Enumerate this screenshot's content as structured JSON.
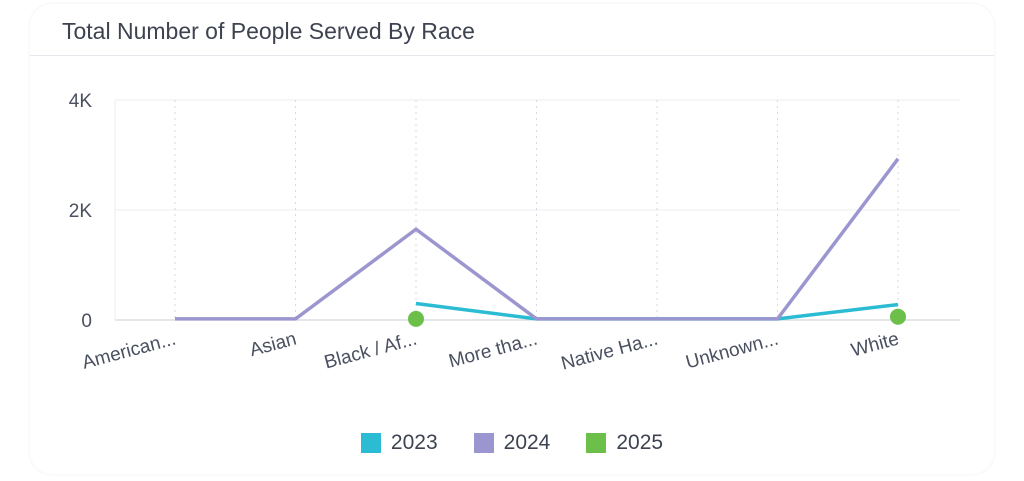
{
  "title": "Total Number of People Served By Race",
  "chart_data": {
    "type": "line",
    "title": "Total Number of People Served By Race",
    "xlabel": "",
    "ylabel": "",
    "categories": [
      "American...",
      "Asian",
      "Black / Af...",
      "More tha...",
      "Native Ha...",
      "Unknown...",
      "White"
    ],
    "yticks": [
      "0",
      "2K",
      "4K"
    ],
    "ytick_values": [
      0,
      2000,
      4000
    ],
    "ylim": [
      0,
      4000
    ],
    "grid": true,
    "legend_position": "bottom",
    "series": [
      {
        "name": "2023",
        "color": "#2bbcd4",
        "values": [
          null,
          null,
          300,
          20,
          20,
          20,
          280
        ]
      },
      {
        "name": "2024",
        "color": "#9b96cf",
        "values": [
          20,
          20,
          1650,
          20,
          20,
          20,
          2930
        ]
      },
      {
        "name": "2025",
        "color": "#6cc04a",
        "values": [
          null,
          null,
          20,
          null,
          null,
          null,
          60
        ]
      }
    ]
  }
}
